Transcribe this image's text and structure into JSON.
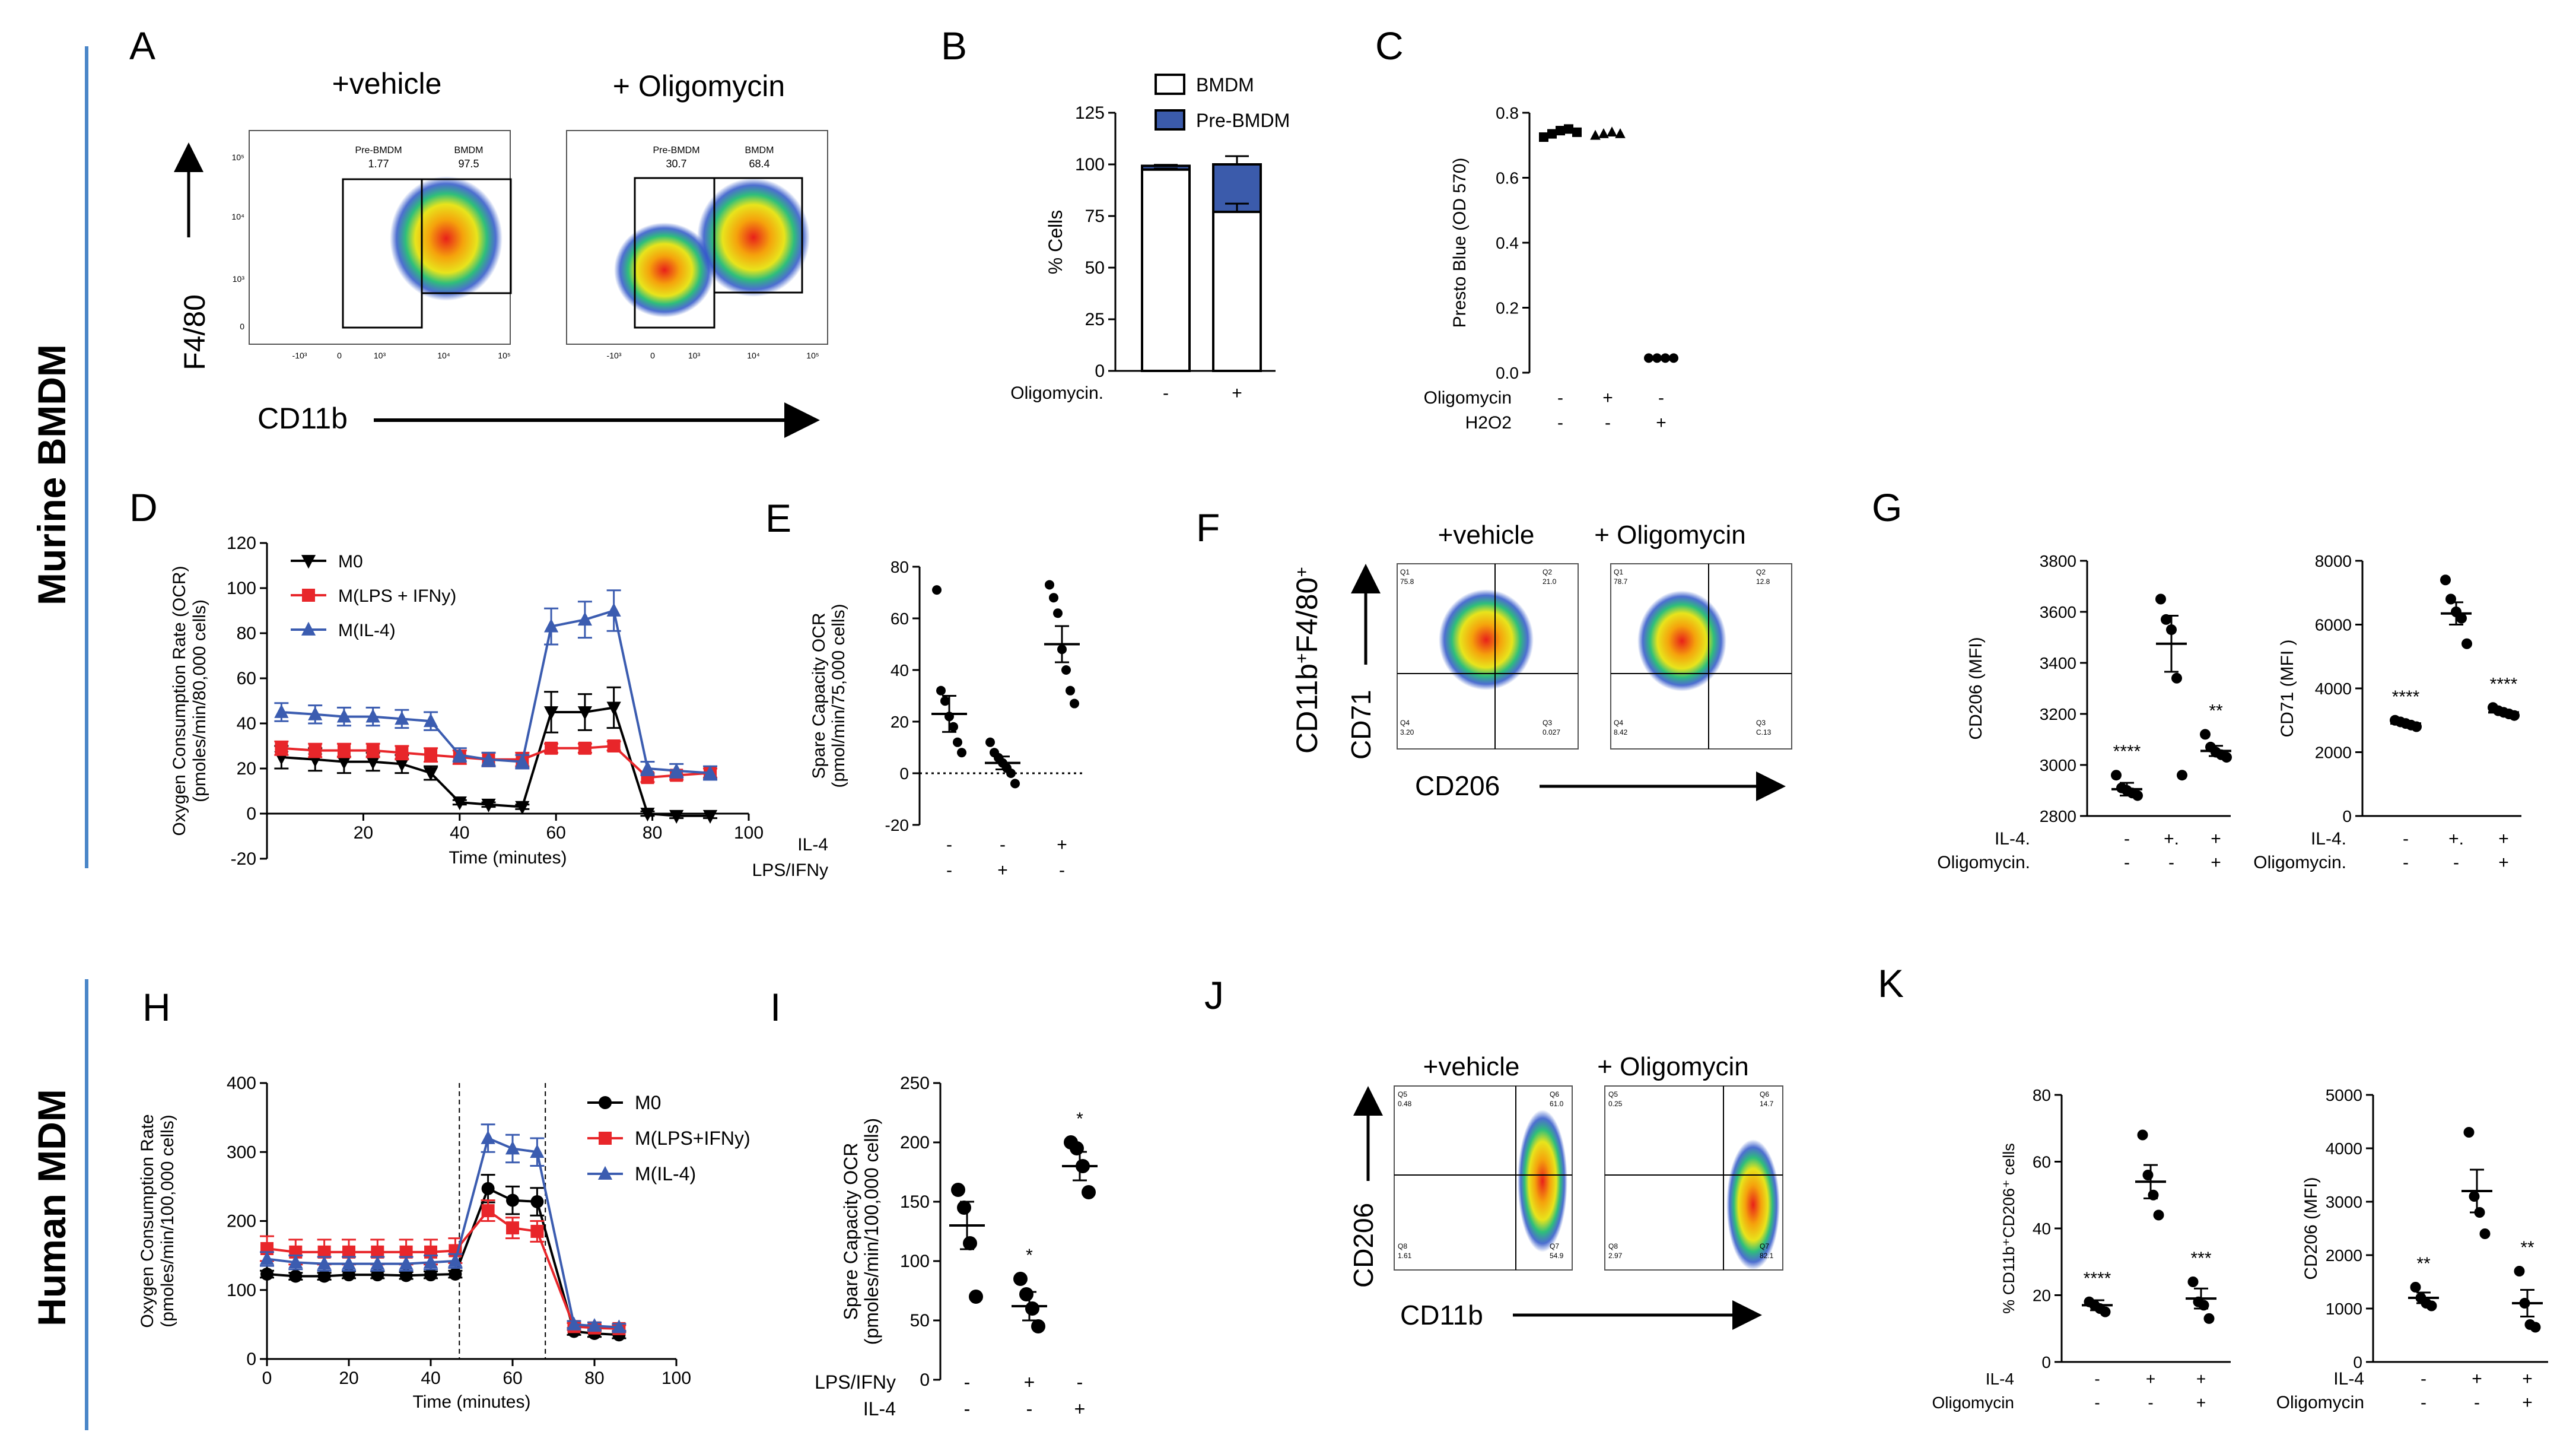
{
  "sections": {
    "murine": "Murine BMDM",
    "human": "Human MDM"
  },
  "panel_letters": [
    "A",
    "B",
    "C",
    "D",
    "E",
    "F",
    "G",
    "H",
    "I",
    "J",
    "K"
  ],
  "colors": {
    "side_bar": "#4a86c8",
    "bmdm_fill": "#ffffff",
    "prebmdm_fill": "#3b5bab",
    "M0": "#000000",
    "LPS": "#e8262a",
    "IL4": "#3b5cb0"
  },
  "flow_A": {
    "conditions": [
      "+vehicle",
      "+ Oligomycin"
    ],
    "ylabel": "F4/80",
    "xlabel": "CD11b",
    "y_ticks": [
      "10⁵",
      "10⁴",
      "10³",
      "0"
    ],
    "x_ticks": [
      "-10³",
      "0",
      "10³",
      "10⁴",
      "10⁵"
    ],
    "gates": [
      {
        "pre_label": "Pre-BMDM",
        "pre_value": "1.77",
        "bmdm_label": "BMDM",
        "bmdm_value": "97.5"
      },
      {
        "pre_label": "Pre-BMDM",
        "pre_value": "30.7",
        "bmdm_label": "BMDM",
        "bmdm_value": "68.4"
      }
    ]
  },
  "flow_F": {
    "conditions": [
      "+vehicle",
      "+ Oligomycin"
    ],
    "ylabel": "CD71",
    "gate_label_main": "CD11b",
    "gate_label_sup1": "+",
    "gate_label_mid": "F4/80",
    "gate_label_sup2": "+",
    "xlabel": "CD206",
    "quadrants": [
      {
        "Q1": "Q1",
        "Q1v": "75.8",
        "Q2": "Q2",
        "Q2v": "21.0",
        "Q3": "Q3",
        "Q3v": "0.027",
        "Q4": "Q4",
        "Q4v": "3.20"
      },
      {
        "Q1": "Q1",
        "Q1v": "78.7",
        "Q2": "Q2",
        "Q2v": "12.8",
        "Q3": "Q3",
        "Q3v": "C.13",
        "Q4": "Q4",
        "Q4v": "8.42"
      }
    ]
  },
  "flow_J": {
    "conditions": [
      "+vehicle",
      "+ Oligomycin"
    ],
    "ylabel": "CD206",
    "xlabel": "CD11b",
    "quadrants": [
      {
        "Q5": "Q5",
        "Q5v": "0.48",
        "Q6": "Q6",
        "Q6v": "61.0",
        "Q7": "Q7",
        "Q7v": "54.9",
        "Q8": "Q8",
        "Q8v": "1.61"
      },
      {
        "Q5": "Q5",
        "Q5v": "0.25",
        "Q6": "Q6",
        "Q6v": "14.7",
        "Q7": "Q7",
        "Q7v": "82.1",
        "Q8": "Q8",
        "Q8v": "2.97"
      }
    ]
  },
  "chart_data": [
    {
      "id": "B",
      "type": "bar",
      "stacked": true,
      "categories": [
        "-",
        "+"
      ],
      "series": [
        {
          "name": "BMDM",
          "values": [
            97.5,
            77
          ]
        },
        {
          "name": "Pre-BMDM",
          "values": [
            1.8,
            23
          ]
        }
      ],
      "totals": [
        99.3,
        100
      ],
      "total_error": [
        0.5,
        4
      ],
      "bmdm_error": [
        0.5,
        4
      ],
      "ylabel": "% Cells",
      "ylim": [
        0,
        125
      ],
      "yticks": [
        "0",
        "25",
        "50",
        "75",
        "100",
        "125"
      ],
      "row_labels": [
        "Oligomycin."
      ],
      "legend": [
        "BMDM",
        "Pre-BMDM"
      ]
    },
    {
      "id": "C",
      "type": "scatter",
      "groups": [
        {
          "points": [
            0.725,
            0.735,
            0.745,
            0.75,
            0.74
          ],
          "marker": "square"
        },
        {
          "points": [
            0.73,
            0.735,
            0.74,
            0.735
          ],
          "marker": "triangle"
        },
        {
          "points": [
            0.045,
            0.045,
            0.045,
            0.045
          ],
          "marker": "circle"
        }
      ],
      "means": [
        0.74,
        0.735,
        0.045
      ],
      "ylabel": "Presto Blue (OD 570)",
      "ylim": [
        0,
        0.8
      ],
      "yticks": [
        "0.0",
        "0.2",
        "0.4",
        "0.6",
        "0.8"
      ],
      "row_labels": [
        "Oligomycin",
        "H2O2"
      ],
      "rows": [
        [
          "-",
          "+",
          "-"
        ],
        [
          "-",
          "-",
          "+"
        ]
      ]
    },
    {
      "id": "D",
      "type": "line",
      "x": [
        3,
        10,
        16,
        22,
        28,
        34,
        40,
        46,
        53,
        59,
        66,
        72,
        79,
        85,
        92
      ],
      "series": [
        {
          "name": "M0",
          "marker": "triangle-down",
          "values": [
            25,
            24,
            23,
            23,
            22,
            18,
            5,
            4,
            3,
            45,
            45,
            47,
            0,
            -1,
            -1
          ],
          "errors": [
            5,
            5,
            5,
            4,
            4,
            3,
            1,
            1,
            1,
            9,
            8,
            9,
            1,
            1,
            1
          ]
        },
        {
          "name": "M(LPS + IFNy)",
          "marker": "square",
          "values": [
            29,
            28,
            28,
            28,
            27,
            26,
            25,
            24,
            24,
            29,
            29,
            30,
            16,
            17,
            18
          ],
          "errors": [
            3,
            3,
            3,
            3,
            3,
            3,
            3,
            3,
            3,
            2,
            2,
            2,
            2,
            2,
            2
          ]
        },
        {
          "name": "M(IL-4)",
          "marker": "triangle-up",
          "values": [
            45,
            44,
            43,
            43,
            42,
            41,
            26,
            24,
            23,
            83,
            86,
            90,
            20,
            19,
            18
          ],
          "errors": [
            4,
            4,
            4,
            4,
            4,
            4,
            3,
            3,
            3,
            8,
            8,
            9,
            3,
            3,
            3
          ]
        }
      ],
      "ylabel": "Oxygen Consumption Rate (OCR)",
      "ylabel2": "(pmoles/min/80,000 cells)",
      "xlabel": "Time (minutes)",
      "ylim": [
        -20,
        120
      ],
      "xlim": [
        0,
        100
      ],
      "yticks": [
        "-20",
        "0",
        "20",
        "40",
        "60",
        "80",
        "100",
        "120"
      ],
      "xticks": [
        "20",
        "40",
        "60",
        "80",
        "100"
      ]
    },
    {
      "id": "E",
      "type": "scatter",
      "groups": [
        {
          "points": [
            71,
            32,
            28,
            22,
            18,
            12,
            8
          ]
        },
        {
          "points": [
            12,
            8,
            6,
            4,
            2,
            0,
            -4
          ]
        },
        {
          "points": [
            73,
            68,
            62,
            48,
            40,
            32,
            27
          ]
        }
      ],
      "means": [
        23,
        4,
        50
      ],
      "sems": [
        7,
        2.5,
        7
      ],
      "ylabel": "Spare Capacity OCR",
      "ylabel2": "(pmol/min/75,000 cells)",
      "ylim": [
        -20,
        80
      ],
      "yticks": [
        "-20",
        "0",
        "20",
        "40",
        "60",
        "80"
      ],
      "row_labels": [
        "IL-4",
        "LPS/IFNy"
      ],
      "rows": [
        [
          "-",
          "-",
          "+"
        ],
        [
          "-",
          "+",
          "-"
        ]
      ]
    },
    {
      "id": "G1",
      "type": "scatter",
      "groups": [
        {
          "points": [
            2960,
            2910,
            2900,
            2890,
            2880
          ]
        },
        {
          "points": [
            3650,
            3570,
            3530,
            3340,
            2960
          ]
        },
        {
          "points": [
            3120,
            3070,
            3050,
            3040,
            3030
          ]
        }
      ],
      "means": [
        2905,
        3475,
        3055
      ],
      "sems": [
        25,
        110,
        20
      ],
      "stars": [
        "****",
        "",
        "**"
      ],
      "ylabel": "CD206 (MFI)",
      "ylim": [
        2800,
        3800
      ],
      "yticks": [
        "2800",
        "3000",
        "3200",
        "3400",
        "3600",
        "3800"
      ],
      "row_labels": [
        "IL-4.",
        "Oligomycin."
      ],
      "rows": [
        [
          "-",
          "+.",
          "+"
        ],
        [
          "-",
          "-",
          "+"
        ]
      ]
    },
    {
      "id": "G2",
      "type": "scatter",
      "groups": [
        {
          "points": [
            3000,
            2950,
            2900,
            2850,
            2800
          ]
        },
        {
          "points": [
            7400,
            6800,
            6400,
            6200,
            5400
          ]
        },
        {
          "points": [
            3400,
            3300,
            3250,
            3200,
            3150
          ]
        }
      ],
      "means": [
        2900,
        6350,
        3250
      ],
      "sems": [
        80,
        350,
        60
      ],
      "stars": [
        "****",
        "",
        "****"
      ],
      "ylabel": "CD71 (MFI )",
      "ylim": [
        0,
        8000
      ],
      "yticks": [
        "0",
        "2000",
        "4000",
        "6000",
        "8000"
      ],
      "row_labels": [
        "IL-4.",
        "Oligomycin."
      ],
      "rows": [
        [
          "-",
          "+.",
          "+"
        ],
        [
          "-",
          "-",
          "+"
        ]
      ]
    },
    {
      "id": "H",
      "type": "line",
      "x": [
        0,
        7,
        14,
        20,
        27,
        34,
        40,
        46,
        54,
        60,
        66,
        75,
        80,
        86
      ],
      "series": [
        {
          "name": "M0",
          "marker": "circle",
          "values": [
            123,
            120,
            120,
            122,
            122,
            121,
            122,
            123,
            247,
            230,
            228,
            40,
            37,
            35
          ],
          "errors": [
            5,
            5,
            5,
            5,
            5,
            5,
            5,
            5,
            20,
            20,
            20,
            5,
            5,
            5
          ]
        },
        {
          "name": "M(LPS+IFNy)",
          "marker": "square",
          "values": [
            160,
            155,
            155,
            155,
            155,
            155,
            155,
            157,
            215,
            190,
            185,
            47,
            45,
            44
          ],
          "errors": [
            18,
            18,
            18,
            18,
            18,
            18,
            18,
            18,
            15,
            15,
            15,
            5,
            5,
            5
          ]
        },
        {
          "name": "M(IL-4)",
          "marker": "triangle-up",
          "values": [
            145,
            140,
            138,
            138,
            138,
            138,
            140,
            142,
            320,
            305,
            300,
            50,
            48,
            46
          ],
          "errors": [
            10,
            10,
            10,
            10,
            10,
            10,
            10,
            10,
            20,
            20,
            20,
            5,
            5,
            5
          ]
        }
      ],
      "injections": [
        47,
        68
      ],
      "ylabel": "Oxygen Consumption Rate",
      "ylabel2": "(pmoles/min/100,000 cells)",
      "xlabel": "Time (minutes)",
      "ylim": [
        0,
        400
      ],
      "xlim": [
        0,
        100
      ],
      "yticks": [
        "0",
        "100",
        "200",
        "300",
        "400"
      ],
      "xticks": [
        "0",
        "20",
        "40",
        "60",
        "80",
        "100"
      ]
    },
    {
      "id": "I",
      "type": "scatter",
      "groups": [
        {
          "points": [
            160,
            145,
            115,
            70
          ]
        },
        {
          "points": [
            85,
            72,
            60,
            45
          ]
        },
        {
          "points": [
            200,
            195,
            180,
            158
          ]
        }
      ],
      "means": [
        130,
        62,
        180
      ],
      "sems": [
        20,
        12,
        12
      ],
      "stars": [
        "",
        "*",
        "*"
      ],
      "ylabel": "Spare Capacity OCR",
      "ylabel2": "(pmoles/min/100,000 cells)",
      "ylim": [
        0,
        250
      ],
      "yticks": [
        "0",
        "50",
        "100",
        "150",
        "200",
        "250"
      ],
      "row_labels": [
        "LPS/IFNy",
        "IL-4"
      ],
      "rows": [
        [
          "-",
          "+",
          "-"
        ],
        [
          "-",
          "-",
          "+"
        ]
      ]
    },
    {
      "id": "K1",
      "type": "scatter",
      "groups": [
        {
          "points": [
            18,
            17,
            16,
            15
          ]
        },
        {
          "points": [
            68,
            56,
            50,
            44
          ]
        },
        {
          "points": [
            24,
            18,
            17,
            13
          ]
        }
      ],
      "means": [
        17,
        54,
        19
      ],
      "sems": [
        1.5,
        5,
        3
      ],
      "stars": [
        "****",
        "",
        "***"
      ],
      "ylabel": "% CD11b⁺CD206⁺ cells",
      "ylim": [
        0,
        80
      ],
      "yticks": [
        "0",
        "20",
        "40",
        "60",
        "80"
      ],
      "row_labels": [
        "IL-4",
        "Oligomycin"
      ],
      "rows": [
        [
          "-",
          "+",
          "+"
        ],
        [
          "-",
          "-",
          "+"
        ]
      ]
    },
    {
      "id": "K2",
      "type": "scatter",
      "groups": [
        {
          "points": [
            1400,
            1200,
            1100,
            1050
          ]
        },
        {
          "points": [
            4300,
            3100,
            2800,
            2400
          ]
        },
        {
          "points": [
            1700,
            1100,
            700,
            650
          ]
        }
      ],
      "means": [
        1200,
        3200,
        1100
      ],
      "sems": [
        100,
        400,
        250
      ],
      "stars": [
        "**",
        "",
        "**"
      ],
      "ylabel": "CD206 (MFI)",
      "ylim": [
        0,
        5000
      ],
      "yticks": [
        "0",
        "1000",
        "2000",
        "3000",
        "4000",
        "5000"
      ],
      "row_labels": [
        "IL-4",
        "Oligomycin"
      ],
      "rows": [
        [
          "-",
          "+",
          "+"
        ],
        [
          "-",
          "-",
          "+"
        ]
      ]
    }
  ]
}
